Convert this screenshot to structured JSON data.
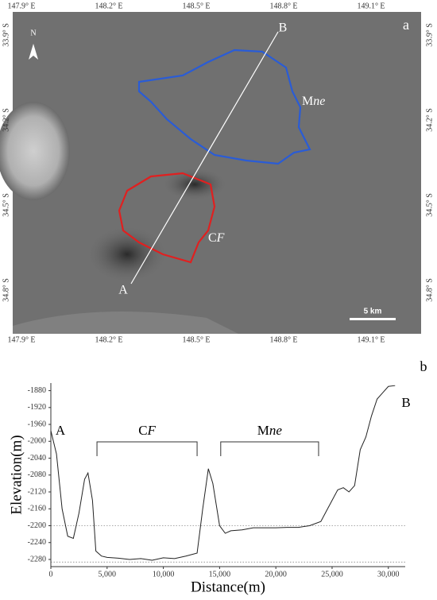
{
  "map": {
    "panel_label": "a",
    "lon_labels": [
      "147.9° E",
      "148.2° E",
      "148.5° E",
      "148.8° E",
      "149.1° E"
    ],
    "lat_labels": [
      "33.9° S",
      "34.2° S",
      "34.5° S",
      "34.8° S"
    ],
    "north": "N",
    "point_a": "A",
    "point_b": "B",
    "mne_label": [
      "M",
      "ne"
    ],
    "cf_label": [
      "C",
      "F"
    ],
    "scale": "5 km"
  },
  "chart_data": {
    "type": "line",
    "panel_label": "b",
    "ylabel": "Elevation(m)",
    "xlabel": "Distance(m)",
    "x": [
      0,
      500,
      1000,
      1500,
      2000,
      2500,
      3000,
      3300,
      3700,
      4000,
      4500,
      5000,
      6000,
      7000,
      8000,
      9000,
      10000,
      11000,
      12000,
      13000,
      13500,
      14000,
      14400,
      15000,
      15500,
      16000,
      17000,
      18000,
      19000,
      20000,
      21000,
      22000,
      23000,
      24000,
      24500,
      25000,
      25500,
      26000,
      26500,
      27000,
      27500,
      28000,
      28500,
      29000,
      29500,
      30000,
      30600
    ],
    "values": [
      -1975,
      -2030,
      -2160,
      -2225,
      -2230,
      -2170,
      -2090,
      -2075,
      -2140,
      -2260,
      -2272,
      -2275,
      -2277,
      -2280,
      -2278,
      -2282,
      -2276,
      -2278,
      -2272,
      -2265,
      -2160,
      -2065,
      -2100,
      -2200,
      -2218,
      -2212,
      -2210,
      -2205,
      -2205,
      -2205,
      -2204,
      -2204,
      -2200,
      -2190,
      -2165,
      -2140,
      -2115,
      -2110,
      -2120,
      -2105,
      -2020,
      -1990,
      -1940,
      -1900,
      -1885,
      -1870,
      -1868
    ],
    "color": "#222222",
    "xlim": [
      0,
      31500
    ],
    "ylim": [
      -2297,
      -1862
    ],
    "xticks": [
      0,
      {
        "value": 5000,
        "label": "5,000"
      },
      {
        "value": 10000,
        "label": "10,000"
      },
      {
        "value": 15000,
        "label": "15,000"
      },
      {
        "value": 20000,
        "label": "20,000"
      },
      {
        "value": 25000,
        "label": "25,000"
      },
      {
        "value": 30000,
        "label": "30,000"
      }
    ],
    "yticks": [
      -2280,
      -2240,
      -2200,
      -2160,
      -2120,
      -2080,
      -2040,
      -2000,
      -1960,
      -1920,
      -1880
    ],
    "reference_lines": [
      -2200,
      -2286
    ],
    "annotations": [
      {
        "parts": [
          "C",
          "F"
        ],
        "x": [
          4100,
          13000
        ]
      },
      {
        "parts": [
          "M",
          "ne"
        ],
        "x": [
          15100,
          23800
        ]
      }
    ],
    "end_labels": [
      "A",
      "B"
    ]
  }
}
